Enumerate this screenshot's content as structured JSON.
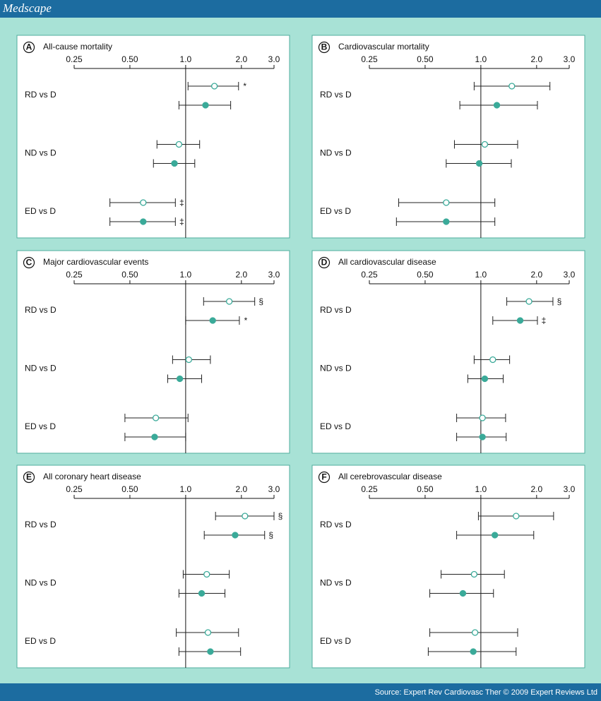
{
  "header": {
    "title": "Medscape"
  },
  "footer": {
    "source": "Source: Expert Rev Cardiovasc Ther © 2009 Expert Reviews Ltd"
  },
  "chart_data": [
    {
      "type": "forest",
      "panel_label": "A",
      "title": "All-cause mortality",
      "xscale": "log",
      "xlim": [
        0.25,
        3.0
      ],
      "xticks": [
        0.25,
        {
          "value": 0.5,
          "label": "0.50"
        },
        {
          "value": 1,
          "label": "1.0"
        },
        {
          "value": 2,
          "label": "2.0"
        },
        {
          "value": 3,
          "label": "3.0"
        }
      ],
      "categories": [
        "RD vs D",
        "ND vs D",
        "ED vs D"
      ],
      "series": [
        {
          "marker": "open",
          "color": "#3aaa99",
          "values": [
            1.43,
            0.92,
            0.59
          ],
          "lower": [
            1.03,
            0.7,
            0.39
          ],
          "upper": [
            1.93,
            1.19,
            0.88
          ],
          "annotations": [
            "*",
            null,
            "‡"
          ]
        },
        {
          "marker": "filled",
          "color": "#3aaa99",
          "values": [
            1.28,
            0.87,
            0.59
          ],
          "lower": [
            0.92,
            0.67,
            0.39
          ],
          "upper": [
            1.75,
            1.12,
            0.88
          ],
          "annotations": [
            null,
            null,
            "‡"
          ]
        }
      ]
    },
    {
      "type": "forest",
      "panel_label": "B",
      "title": "Cardiovascular mortality",
      "xscale": "log",
      "xlim": [
        0.25,
        3.0
      ],
      "xticks": [
        0.25,
        {
          "value": 0.5,
          "label": "0.50"
        },
        {
          "value": 1,
          "label": "1.0"
        },
        {
          "value": 2,
          "label": "2.0"
        },
        {
          "value": 3,
          "label": "3.0"
        }
      ],
      "categories": [
        "RD vs D",
        "ND vs D",
        "ED vs D"
      ],
      "series": [
        {
          "marker": "open",
          "color": "#3aaa99",
          "values": [
            1.47,
            1.05,
            0.65
          ],
          "lower": [
            0.92,
            0.72,
            0.36
          ],
          "upper": [
            2.36,
            1.58,
            1.19
          ],
          "annotations": [
            null,
            null,
            null
          ]
        },
        {
          "marker": "filled",
          "color": "#3aaa99",
          "values": [
            1.22,
            0.98,
            0.65
          ],
          "lower": [
            0.77,
            0.65,
            0.35
          ],
          "upper": [
            2.02,
            1.46,
            1.19
          ],
          "annotations": [
            null,
            null,
            null
          ]
        }
      ]
    },
    {
      "type": "forest",
      "panel_label": "C",
      "title": "Major cardiovascular events",
      "xscale": "log",
      "xlim": [
        0.25,
        3.0
      ],
      "xticks": [
        0.25,
        {
          "value": 0.5,
          "label": "0.50"
        },
        {
          "value": 1,
          "label": "1.0"
        },
        {
          "value": 2,
          "label": "2.0"
        },
        {
          "value": 3,
          "label": "3.0"
        }
      ],
      "categories": [
        "RD vs D",
        "ND vs D",
        "ED vs D"
      ],
      "series": [
        {
          "marker": "open",
          "color": "#3aaa99",
          "values": [
            1.72,
            1.04,
            0.69
          ],
          "lower": [
            1.25,
            0.85,
            0.47
          ],
          "upper": [
            2.36,
            1.36,
            1.03
          ],
          "annotations": [
            "§",
            null,
            null
          ]
        },
        {
          "marker": "filled",
          "color": "#3aaa99",
          "values": [
            1.4,
            0.93,
            0.68
          ],
          "lower": [
            1.0,
            0.8,
            0.47
          ],
          "upper": [
            1.95,
            1.22,
            1.0
          ],
          "annotations": [
            "*",
            null,
            null
          ]
        }
      ]
    },
    {
      "type": "forest",
      "panel_label": "D",
      "title": "All cardiovascular disease",
      "xscale": "log",
      "xlim": [
        0.25,
        3.0
      ],
      "xticks": [
        0.25,
        {
          "value": 0.5,
          "label": "0.50"
        },
        {
          "value": 1,
          "label": "1.0"
        },
        {
          "value": 2,
          "label": "2.0"
        },
        {
          "value": 3,
          "label": "3.0"
        }
      ],
      "categories": [
        "RD vs D",
        "ND vs D",
        "ED vs D"
      ],
      "series": [
        {
          "marker": "open",
          "color": "#3aaa99",
          "values": [
            1.82,
            1.16,
            1.02
          ],
          "lower": [
            1.38,
            0.92,
            0.74
          ],
          "upper": [
            2.45,
            1.43,
            1.36
          ],
          "annotations": [
            "§",
            null,
            null
          ]
        },
        {
          "marker": "filled",
          "color": "#3aaa99",
          "values": [
            1.63,
            1.05,
            1.02
          ],
          "lower": [
            1.16,
            0.85,
            0.74
          ],
          "upper": [
            2.02,
            1.32,
            1.37
          ],
          "annotations": [
            "‡",
            null,
            null
          ]
        }
      ]
    },
    {
      "type": "forest",
      "panel_label": "E",
      "title": "All coronary heart disease",
      "xscale": "log",
      "xlim": [
        0.25,
        3.0
      ],
      "xticks": [
        0.25,
        {
          "value": 0.5,
          "label": "0.50"
        },
        {
          "value": 1,
          "label": "1.0"
        },
        {
          "value": 2,
          "label": "2.0"
        },
        {
          "value": 3,
          "label": "3.0"
        }
      ],
      "categories": [
        "RD vs D",
        "ND vs D",
        "ED vs D"
      ],
      "series": [
        {
          "marker": "open",
          "color": "#3aaa99",
          "values": [
            2.09,
            1.3,
            1.32
          ],
          "lower": [
            1.45,
            0.97,
            0.89
          ],
          "upper": [
            3.0,
            1.72,
            1.93
          ],
          "annotations": [
            "§",
            null,
            null
          ]
        },
        {
          "marker": "filled",
          "color": "#3aaa99",
          "values": [
            1.85,
            1.22,
            1.36
          ],
          "lower": [
            1.26,
            0.92,
            0.92
          ],
          "upper": [
            2.67,
            1.63,
            1.98
          ],
          "annotations": [
            "§",
            null,
            null
          ]
        }
      ]
    },
    {
      "type": "forest",
      "panel_label": "F",
      "title": "All cerebrovascular disease",
      "xscale": "log",
      "xlim": [
        0.25,
        3.0
      ],
      "xticks": [
        0.25,
        {
          "value": 0.5,
          "label": "0.50"
        },
        {
          "value": 1,
          "label": "1.0"
        },
        {
          "value": 2,
          "label": "2.0"
        },
        {
          "value": 3,
          "label": "3.0"
        }
      ],
      "categories": [
        "RD vs D",
        "ND vs D",
        "ED vs D"
      ],
      "series": [
        {
          "marker": "open",
          "color": "#3aaa99",
          "values": [
            1.55,
            0.92,
            0.93
          ],
          "lower": [
            0.97,
            0.61,
            0.53
          ],
          "upper": [
            2.47,
            1.34,
            1.58
          ],
          "annotations": [
            null,
            null,
            null
          ]
        },
        {
          "marker": "filled",
          "color": "#3aaa99",
          "values": [
            1.19,
            0.8,
            0.91
          ],
          "lower": [
            0.74,
            0.53,
            0.52
          ],
          "upper": [
            1.93,
            1.17,
            1.55
          ],
          "annotations": [
            null,
            null,
            null
          ]
        }
      ]
    }
  ]
}
